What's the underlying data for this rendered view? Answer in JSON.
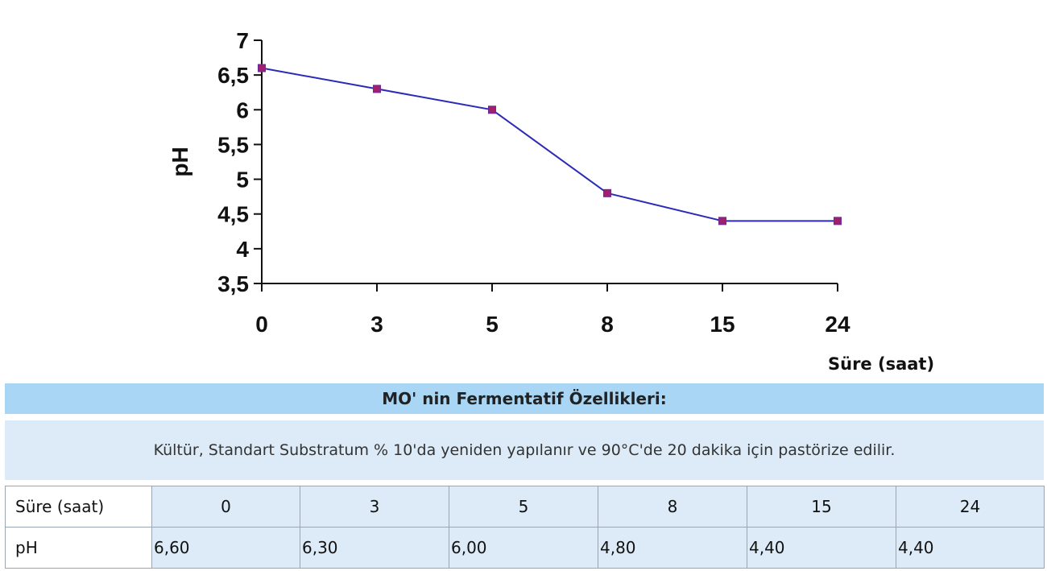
{
  "chart_data": {
    "type": "line",
    "title": "",
    "xlabel": "Süre (saat)",
    "ylabel": "pH",
    "categories": [
      "0",
      "3",
      "5",
      "8",
      "15",
      "24"
    ],
    "series": [
      {
        "values": [
          6.6,
          6.3,
          6.0,
          4.8,
          4.4,
          4.4
        ]
      }
    ],
    "yticks": [
      "7",
      "6,5",
      "6",
      "5,5",
      "5",
      "4,5",
      "4",
      "3,5"
    ],
    "ylim": [
      3.5,
      7
    ],
    "grid": false,
    "legend": "none",
    "colors": {
      "line": "#2b2bb8",
      "marker": "#a0206e"
    }
  },
  "section": {
    "title": "MO' nin Fermentatif Özellikleri:",
    "description": "Kültür, Standart Substratum % 10'da yeniden yapılanır ve 90°C'de 20 dakika için pastörize edilir."
  },
  "table": {
    "row1": {
      "label": "Süre (saat)",
      "values": [
        "0",
        "3",
        "5",
        "8",
        "15",
        "24"
      ]
    },
    "row2": {
      "label": "pH",
      "values": [
        "6,60",
        "6,30",
        "6,00",
        "4,80",
        "4,40",
        "4,40"
      ]
    }
  }
}
